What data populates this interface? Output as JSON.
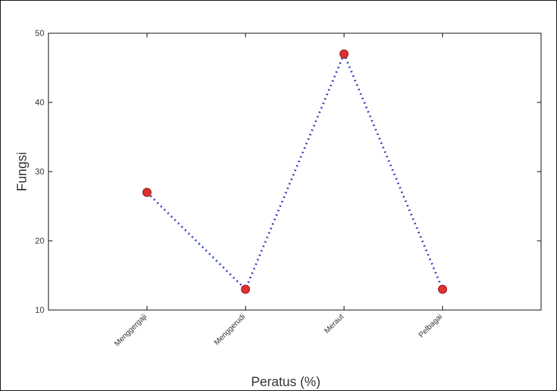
{
  "chart_data": {
    "type": "line",
    "title": "",
    "xlabel": "Peratus (%)",
    "ylabel": "Fungsi",
    "categories": [
      "Menggergaji",
      "Menggerudi",
      "Meraut",
      "Pelbagai"
    ],
    "series": [
      {
        "values": [
          27,
          13,
          47,
          13
        ],
        "line_color": "#2b3bbf",
        "line_style": "dotted",
        "marker_color": "#e03030"
      }
    ],
    "ylim": [
      10,
      50
    ],
    "yticks": [
      10,
      20,
      30,
      40,
      50
    ],
    "grid": false,
    "legend": "none"
  }
}
